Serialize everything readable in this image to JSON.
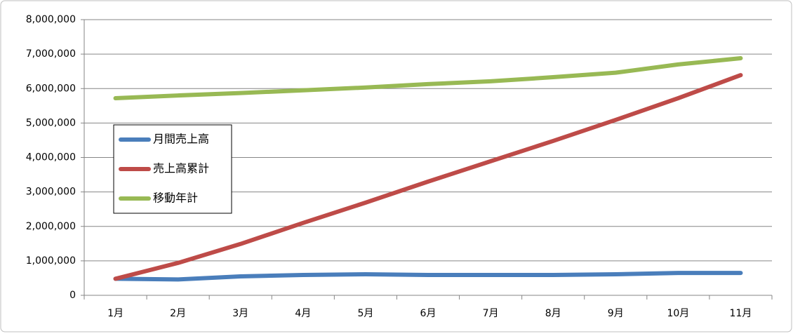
{
  "chart_data": {
    "type": "line",
    "categories": [
      "1月",
      "2月",
      "3月",
      "4月",
      "5月",
      "6月",
      "7月",
      "8月",
      "9月",
      "10月",
      "11月"
    ],
    "series": [
      {
        "name": "月間売上高",
        "color": "#4a7ebb",
        "values": [
          480000,
          460000,
          550000,
          590000,
          610000,
          590000,
          590000,
          590000,
          610000,
          650000,
          650000
        ]
      },
      {
        "name": "売上高累計",
        "color": "#be4b48",
        "values": [
          480000,
          940000,
          1490000,
          2100000,
          2690000,
          3300000,
          3890000,
          4480000,
          5090000,
          5720000,
          6390000
        ]
      },
      {
        "name": "移動年計",
        "color": "#98b954",
        "values": [
          5720000,
          5800000,
          5870000,
          5950000,
          6030000,
          6130000,
          6210000,
          6330000,
          6460000,
          6700000,
          6880000
        ]
      }
    ],
    "ylim": [
      0,
      8000000
    ],
    "yticks": [
      0,
      {
        "value": 1000000,
        "label": "1,000,000"
      },
      {
        "value": 2000000,
        "label": "2,000,000"
      },
      {
        "value": 3000000,
        "label": "3,000,000"
      },
      {
        "value": 4000000,
        "label": "4,000,000"
      },
      {
        "value": 5000000,
        "label": "5,000,000"
      },
      {
        "value": 6000000,
        "label": "6,000,000"
      },
      {
        "value": 7000000,
        "label": "7,000,000"
      },
      {
        "value": 8000000,
        "label": "8,000,000"
      }
    ],
    "grid": true,
    "legend": "left"
  }
}
